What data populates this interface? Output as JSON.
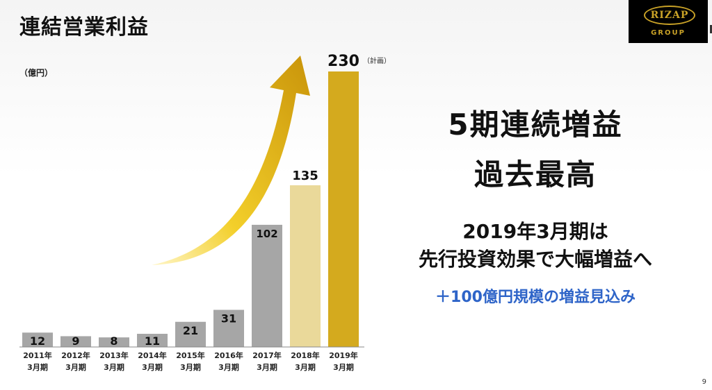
{
  "title": "連結営業利益",
  "logo": {
    "text": "RIZAP",
    "sub": "GROUP"
  },
  "unit_label": "（億円）",
  "chart_data": {
    "type": "bar",
    "categories": [
      [
        "2011年",
        "3月期"
      ],
      [
        "2012年",
        "3月期"
      ],
      [
        "2013年",
        "3月期"
      ],
      [
        "2014年",
        "3月期"
      ],
      [
        "2015年",
        "3月期"
      ],
      [
        "2016年",
        "3月期"
      ],
      [
        "2017年",
        "3月期"
      ],
      [
        "2018年",
        "3月期"
      ],
      [
        "2019年",
        "3月期"
      ]
    ],
    "values": [
      12,
      9,
      8,
      11,
      21,
      31,
      102,
      135,
      230
    ],
    "value_labels": [
      "12",
      "9",
      "8",
      "11",
      "21",
      "31",
      "102",
      "135",
      "230"
    ],
    "plan_note": "（計画）",
    "ylim": [
      0,
      230
    ],
    "bar_colors": [
      "#a6a6a6",
      "#a6a6a6",
      "#a6a6a6",
      "#a6a6a6",
      "#a6a6a6",
      "#a6a6a6",
      "#a6a6a6",
      "#ead99a",
      "#d4aa1e"
    ],
    "arrow_color": "#d9a80e",
    "grid": false
  },
  "headlines": {
    "line1": "5期連続増益",
    "line2": "過去最高",
    "line3": "2019年3月期は",
    "line4": "先行投資効果で大幅増益へ",
    "line5": "＋100億円規模の増益見込み"
  },
  "page_number": "9"
}
